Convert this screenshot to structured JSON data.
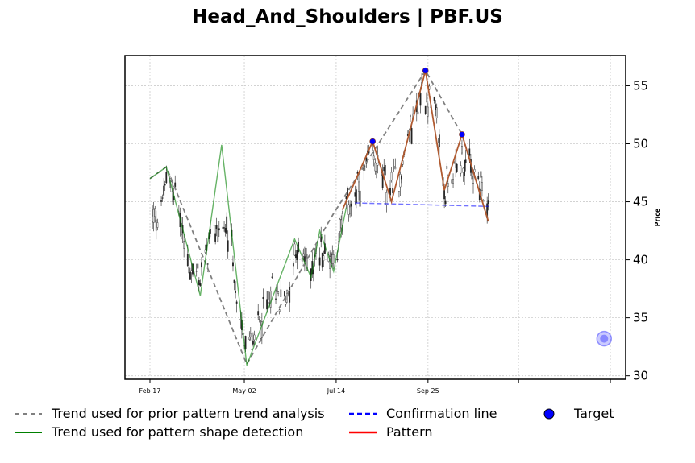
{
  "chart_data": {
    "type": "line",
    "title": "Head_And_Shoulders | PBF.US",
    "ylabel": "Price",
    "xlabel": "",
    "ylim": [
      29.7,
      57.6
    ],
    "y_ticks": [
      30,
      35,
      40,
      45,
      50,
      55
    ],
    "x_axis": {
      "start": "2024-02-17",
      "end": "2025-02-24"
    },
    "x_ticks": [
      {
        "date": "2024-02-17",
        "label": "Feb 17"
      },
      {
        "date": "2024-05-02",
        "label": "May 02"
      },
      {
        "date": "2024-07-14",
        "label": "Jul 14"
      },
      {
        "date": "2024-09-25",
        "label": "Sep 25"
      },
      {
        "date": "2024-12-06",
        "label": ""
      },
      {
        "date": "2025-02-17",
        "label": ""
      }
    ],
    "grid": true,
    "legend_placement": "bottom",
    "colors": {
      "prior_trend": "#808080",
      "shape_trend": "#008000",
      "confirmation": "#0000ff",
      "pattern": "#ff0000",
      "pattern_drawn": "#b05a30",
      "target": "#0000ff",
      "candles": "#000000"
    },
    "series": [
      {
        "name": "Trend used for prior pattern trend analysis",
        "points": [
          {
            "x": "2024-02-17",
            "y": 47.0
          },
          {
            "x": "2024-03-01",
            "y": 48.0
          },
          {
            "x": "2024-05-04",
            "y": 31.0
          },
          {
            "x": "2024-07-12",
            "y": 44.0
          },
          {
            "x": "2024-09-23",
            "y": 56.3
          },
          {
            "x": "2024-10-22",
            "y": 50.8
          },
          {
            "x": "2024-11-12",
            "y": 43.3
          }
        ]
      },
      {
        "name": "Trend used for pattern shape detection",
        "points": [
          {
            "x": "2024-02-17",
            "y": 47.0
          },
          {
            "x": "2024-03-01",
            "y": 48.0
          },
          {
            "x": "2024-03-28",
            "y": 36.9
          },
          {
            "x": "2024-04-14",
            "y": 49.9
          },
          {
            "x": "2024-05-04",
            "y": 30.9
          },
          {
            "x": "2024-06-11",
            "y": 41.8
          },
          {
            "x": "2024-06-24",
            "y": 38.5
          },
          {
            "x": "2024-07-01",
            "y": 42.5
          },
          {
            "x": "2024-07-12",
            "y": 39.0
          },
          {
            "x": "2024-07-22",
            "y": 44.5
          }
        ]
      },
      {
        "name": "Confirmation line",
        "points": [
          {
            "x": "2024-07-29",
            "y": 44.9
          },
          {
            "x": "2024-11-12",
            "y": 44.6
          }
        ]
      },
      {
        "name": "Pattern",
        "points": [
          {
            "x": "2024-07-19",
            "y": 44.3
          },
          {
            "x": "2024-08-12",
            "y": 50.2
          },
          {
            "x": "2024-08-27",
            "y": 45.0
          },
          {
            "x": "2024-09-23",
            "y": 56.3
          },
          {
            "x": "2024-10-08",
            "y": 46.0
          },
          {
            "x": "2024-10-22",
            "y": 50.8
          },
          {
            "x": "2024-11-12",
            "y": 43.3
          }
        ]
      }
    ],
    "pivot_markers": [
      {
        "x": "2024-08-12",
        "y": 50.2
      },
      {
        "x": "2024-09-23",
        "y": 56.3
      },
      {
        "x": "2024-10-22",
        "y": 50.8
      }
    ],
    "target": {
      "x": "2025-02-12",
      "y": 33.2
    },
    "candles_anchor": [
      {
        "x": "2024-02-17",
        "y": 43.0
      },
      {
        "x": "2024-02-24",
        "y": 43.8
      },
      {
        "x": "2024-03-01",
        "y": 46.5
      },
      {
        "x": "2024-03-08",
        "y": 46.0
      },
      {
        "x": "2024-03-14",
        "y": 42.0
      },
      {
        "x": "2024-03-20",
        "y": 39.0
      },
      {
        "x": "2024-03-28",
        "y": 38.5
      },
      {
        "x": "2024-04-05",
        "y": 42.0
      },
      {
        "x": "2024-04-14",
        "y": 43.0
      },
      {
        "x": "2024-04-22",
        "y": 41.0
      },
      {
        "x": "2024-04-26",
        "y": 36.0
      },
      {
        "x": "2024-05-04",
        "y": 32.0
      },
      {
        "x": "2024-05-14",
        "y": 34.5
      },
      {
        "x": "2024-05-24",
        "y": 37.0
      },
      {
        "x": "2024-06-04",
        "y": 36.5
      },
      {
        "x": "2024-06-12",
        "y": 40.5
      },
      {
        "x": "2024-06-24",
        "y": 39.5
      },
      {
        "x": "2024-07-02",
        "y": 41.0
      },
      {
        "x": "2024-07-12",
        "y": 40.0
      },
      {
        "x": "2024-07-22",
        "y": 44.5
      },
      {
        "x": "2024-08-01",
        "y": 46.0
      },
      {
        "x": "2024-08-12",
        "y": 49.0
      },
      {
        "x": "2024-08-24",
        "y": 46.0
      },
      {
        "x": "2024-09-02",
        "y": 47.0
      },
      {
        "x": "2024-09-10",
        "y": 51.0
      },
      {
        "x": "2024-09-20",
        "y": 54.5
      },
      {
        "x": "2024-09-30",
        "y": 53.5
      },
      {
        "x": "2024-10-08",
        "y": 46.0
      },
      {
        "x": "2024-10-22",
        "y": 49.0
      },
      {
        "x": "2024-11-01",
        "y": 47.0
      },
      {
        "x": "2024-11-12",
        "y": 44.5
      }
    ]
  },
  "legend": {
    "prior_trend": "Trend used for prior pattern trend analysis",
    "shape_trend": "Trend used for pattern shape detection",
    "confirmation": "Confirmation line",
    "pattern": "Pattern",
    "target": "Target"
  }
}
